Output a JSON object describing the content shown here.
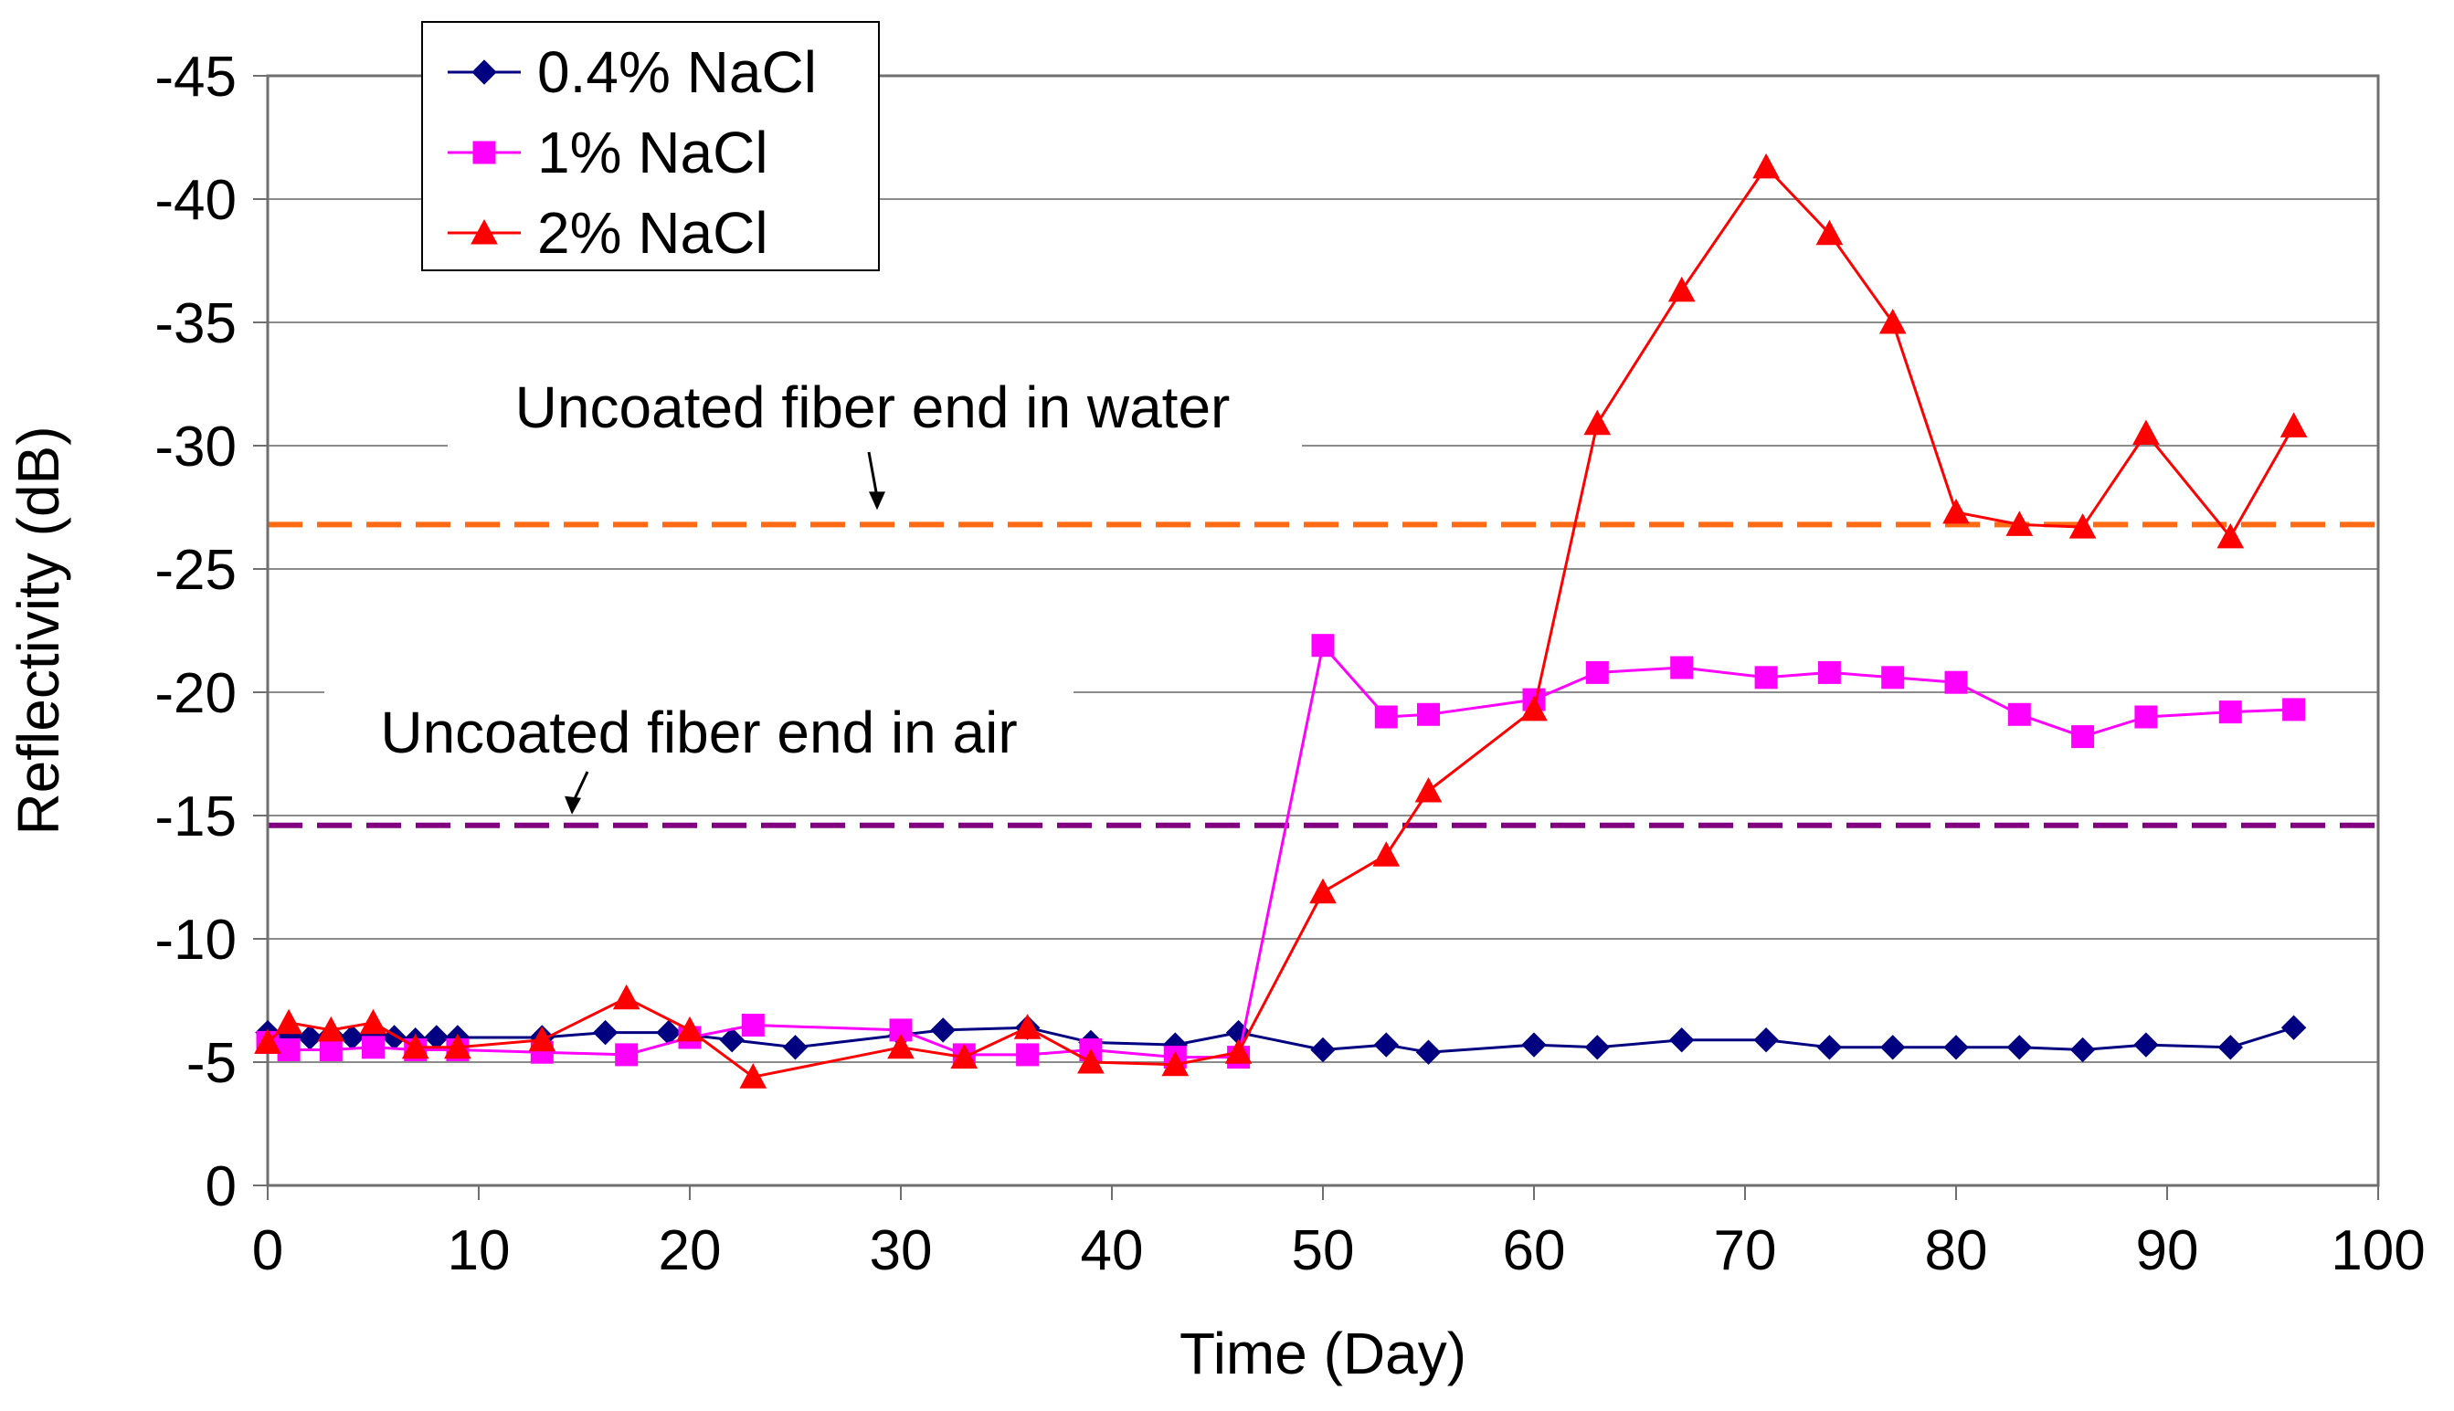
{
  "chart_data": {
    "type": "line",
    "title": "",
    "xlabel": "Time (Day)",
    "ylabel": "Reflectivity (dB)",
    "xlim": [
      0,
      100
    ],
    "ylim": [
      0,
      -45
    ],
    "x_ticks": [
      0,
      10,
      20,
      30,
      40,
      50,
      60,
      70,
      80,
      90,
      100
    ],
    "y_ticks": [
      0,
      -5,
      -10,
      -15,
      -20,
      -25,
      -30,
      -35,
      -40,
      -45
    ],
    "x_tick_labels": [
      "0",
      "10",
      "20",
      "30",
      "40",
      "50",
      "60",
      "70",
      "80",
      "90",
      "100"
    ],
    "y_tick_labels": [
      "0",
      "-5",
      "-10",
      "-15",
      "-20",
      "-25",
      "-30",
      "-35",
      "-40",
      "-45"
    ],
    "grid": "horizontal",
    "legend_position": "top-left",
    "series": [
      {
        "name": "0.4% NaCl",
        "color": "#000080",
        "marker": "diamond",
        "x": [
          0,
          1,
          2,
          3,
          4,
          5,
          6,
          7,
          8,
          9,
          13,
          16,
          19,
          22,
          25,
          30,
          32,
          36,
          39,
          43,
          46,
          50,
          53,
          55,
          60,
          63,
          67,
          71,
          74,
          77,
          80,
          83,
          86,
          89,
          93,
          96
        ],
        "y": [
          -6.2,
          -6.1,
          -6.0,
          -6.1,
          -6.0,
          -6.2,
          -6.0,
          -5.9,
          -6.0,
          -6.0,
          -6.0,
          -6.2,
          -6.2,
          -5.9,
          -5.6,
          -6.1,
          -6.3,
          -6.4,
          -5.8,
          -5.7,
          -6.2,
          -5.5,
          -5.7,
          -5.4,
          -5.7,
          -5.6,
          -5.9,
          -5.9,
          -5.6,
          -5.6,
          -5.6,
          -5.6,
          -5.5,
          -5.7,
          -5.6,
          -6.4
        ]
      },
      {
        "name": "1% NaCl",
        "color": "#ff00ff",
        "marker": "square",
        "x": [
          0,
          1,
          3,
          5,
          7,
          9,
          13,
          17,
          20,
          23,
          30,
          33,
          36,
          39,
          43,
          46,
          50,
          53,
          55,
          60,
          63,
          67,
          71,
          74,
          77,
          80,
          83,
          86,
          89,
          93,
          96
        ],
        "y": [
          -5.8,
          -5.5,
          -5.5,
          -5.6,
          -5.5,
          -5.5,
          -5.4,
          -5.3,
          -6.0,
          -6.5,
          -6.3,
          -5.3,
          -5.3,
          -5.5,
          -5.2,
          -5.2,
          -21.9,
          -19.0,
          -19.1,
          -19.7,
          -20.8,
          -21.0,
          -20.6,
          -20.8,
          -20.6,
          -20.4,
          -19.1,
          -18.2,
          -19.0,
          -19.2,
          -19.3
        ]
      },
      {
        "name": "2% NaCl",
        "color": "#ff0000",
        "marker": "triangle",
        "x": [
          0,
          1,
          3,
          5,
          7,
          9,
          13,
          17,
          20,
          23,
          30,
          33,
          36,
          39,
          43,
          46,
          50,
          53,
          55,
          60,
          63,
          67,
          71,
          74,
          77,
          80,
          83,
          86,
          89,
          93,
          96
        ],
        "y": [
          -5.8,
          -6.6,
          -6.3,
          -6.6,
          -5.6,
          -5.6,
          -5.9,
          -7.6,
          -6.3,
          -4.4,
          -5.6,
          -5.2,
          -6.4,
          -5.0,
          -4.9,
          -5.4,
          -11.9,
          -13.4,
          -16.0,
          -19.3,
          -30.9,
          -36.3,
          -41.3,
          -38.6,
          -35.0,
          -27.3,
          -26.8,
          -26.7,
          -30.5,
          -26.3,
          -30.8
        ]
      }
    ],
    "reference_lines": [
      {
        "label": "Uncoated fiber end in water",
        "y": -26.8,
        "color": "#ff6a13",
        "style": "dashed"
      },
      {
        "label": "Uncoated fiber end in air",
        "y": -14.6,
        "color": "#800080",
        "style": "dashed"
      }
    ]
  }
}
